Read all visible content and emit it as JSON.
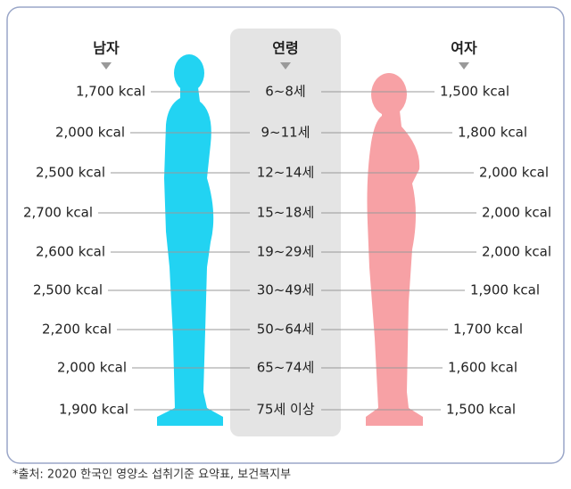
{
  "headers": {
    "male": "남자",
    "age": "연령",
    "female": "여자"
  },
  "rows": [
    {
      "age": "6~8세",
      "male": "1,700 kcal",
      "female": "1,500 kcal"
    },
    {
      "age": "9~11세",
      "male": "2,000 kcal",
      "female": "1,800 kcal"
    },
    {
      "age": "12~14세",
      "male": "2,500 kcal",
      "female": "2,000 kcal"
    },
    {
      "age": "15~18세",
      "male": "2,700 kcal",
      "female": "2,000 kcal"
    },
    {
      "age": "19~29세",
      "male": "2,600 kcal",
      "female": "2,000 kcal"
    },
    {
      "age": "30~49세",
      "male": "2,500 kcal",
      "female": "1,900 kcal"
    },
    {
      "age": "50~64세",
      "male": "2,200 kcal",
      "female": "1,700 kcal"
    },
    {
      "age": "65~74세",
      "male": "2,000 kcal",
      "female": "1,600 kcal"
    },
    {
      "age": "75세 이상",
      "male": "1,900 kcal",
      "female": "1,500 kcal"
    }
  ],
  "source": "*출처: 2020 한국인 영양소 섭취기준 요약표, 보건복지부"
}
